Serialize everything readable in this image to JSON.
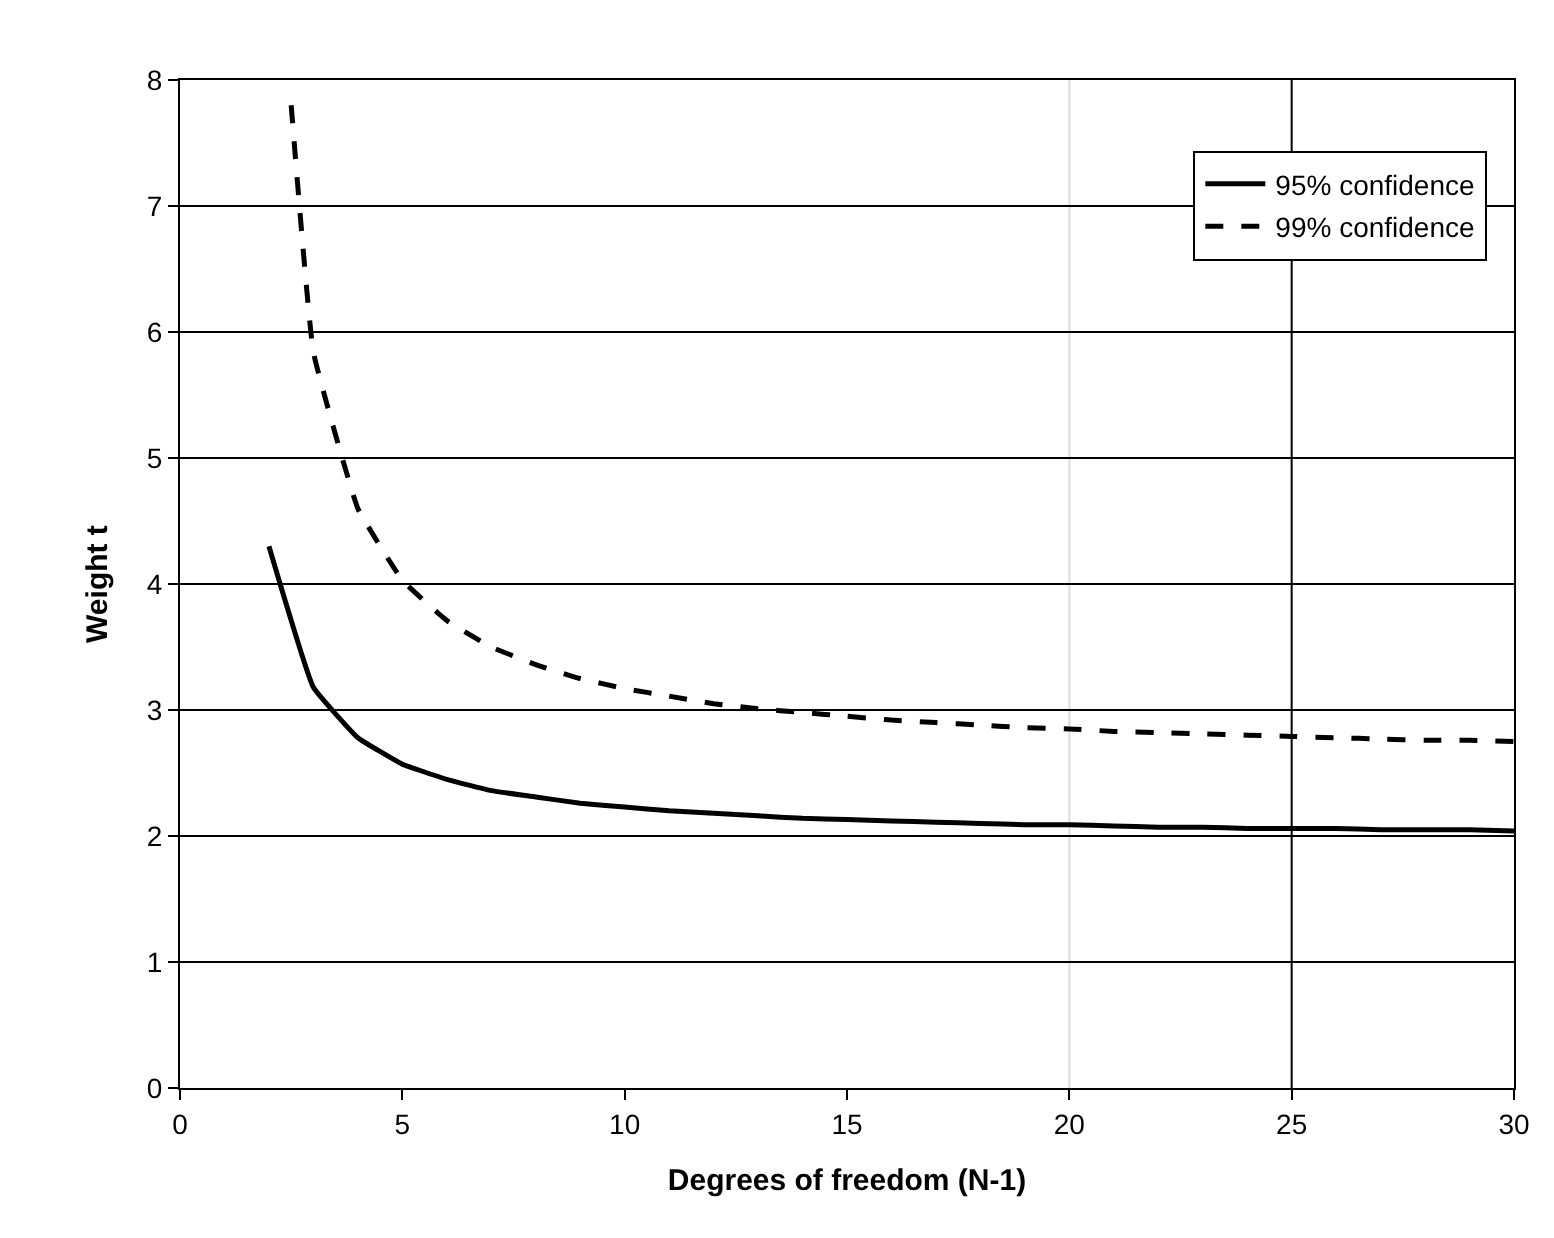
{
  "chart_data": {
    "type": "line",
    "xlabel": "Degrees of freedom (N-1)",
    "ylabel": "Weight t",
    "xlim": [
      0,
      30
    ],
    "xticks": [
      0,
      5,
      10,
      15,
      20,
      25,
      30
    ],
    "ylim": [
      0,
      8
    ],
    "yticks": [
      0,
      1,
      2,
      3,
      4,
      5,
      6,
      7,
      8
    ],
    "grid": "y",
    "legend": "top right",
    "marker": "none",
    "ref_lines": [
      {
        "axis": "x",
        "value": 20,
        "color": "#dddddd"
      },
      {
        "axis": "x",
        "value": 25,
        "color": "#000000"
      }
    ],
    "series": [
      {
        "name": "95% confidence",
        "color": "#000000",
        "line_style": "solid",
        "x": [
          2,
          3,
          4,
          5,
          6,
          7,
          8,
          9,
          10,
          11,
          12,
          13,
          14,
          15,
          16,
          17,
          18,
          19,
          20,
          21,
          22,
          23,
          24,
          25,
          26,
          27,
          28,
          29,
          30
        ],
        "values": [
          4.3,
          3.18,
          2.78,
          2.57,
          2.45,
          2.36,
          2.31,
          2.26,
          2.23,
          2.2,
          2.18,
          2.16,
          2.14,
          2.13,
          2.12,
          2.11,
          2.1,
          2.09,
          2.09,
          2.08,
          2.07,
          2.07,
          2.06,
          2.06,
          2.06,
          2.05,
          2.05,
          2.05,
          2.04
        ]
      },
      {
        "name": "99% confidence",
        "color": "#000000",
        "line_style": "dashed",
        "x": [
          2.5,
          3,
          4,
          5,
          6,
          7,
          8,
          9,
          10,
          11,
          12,
          13,
          14,
          15,
          16,
          17,
          18,
          19,
          20,
          21,
          22,
          23,
          24,
          25,
          26,
          27,
          28,
          29,
          30
        ],
        "values": [
          7.8,
          5.84,
          4.6,
          4.03,
          3.71,
          3.5,
          3.36,
          3.25,
          3.17,
          3.11,
          3.05,
          3.01,
          2.98,
          2.95,
          2.92,
          2.9,
          2.88,
          2.86,
          2.85,
          2.83,
          2.82,
          2.81,
          2.8,
          2.79,
          2.78,
          2.77,
          2.76,
          2.76,
          2.75
        ]
      }
    ]
  }
}
